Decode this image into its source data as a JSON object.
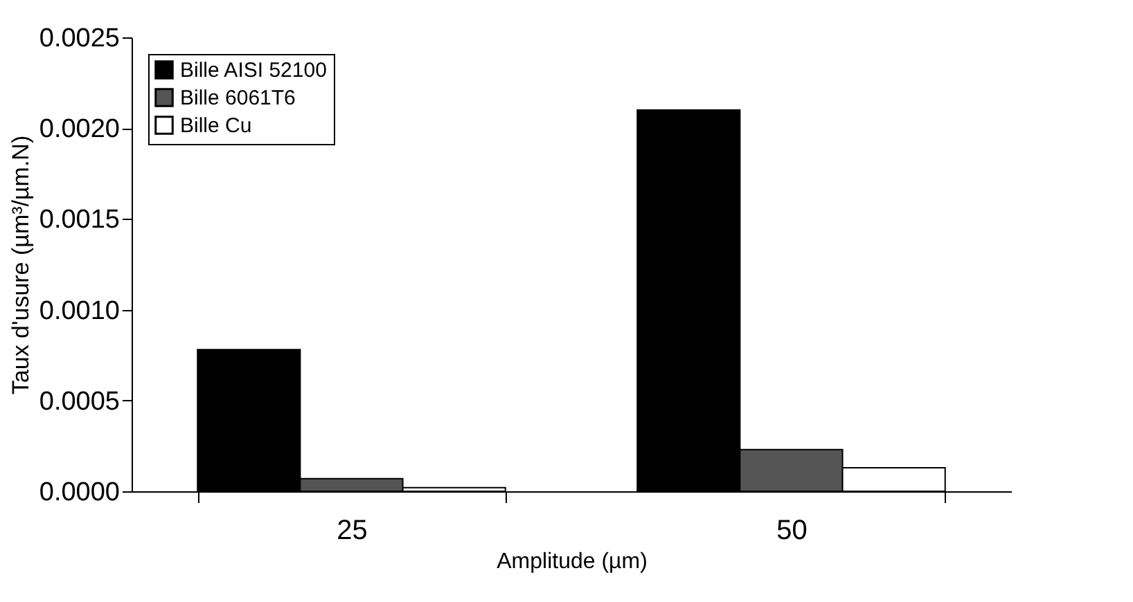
{
  "chart_data": {
    "type": "bar",
    "xlabel": "Amplitude (µm)",
    "ylabel": "Taux d'usure (µm³/µm.N)",
    "categories": [
      "25",
      "50"
    ],
    "series": [
      {
        "name": "Bille AISI 52100",
        "color": "#000000",
        "values": [
          0.00078,
          0.0021
        ]
      },
      {
        "name": "Bille 6061T6",
        "color": "#555555",
        "values": [
          7e-05,
          0.00023
        ]
      },
      {
        "name": "Bille Cu",
        "color": "#ffffff",
        "values": [
          2e-05,
          0.00013
        ]
      }
    ],
    "ylim": [
      0,
      0.0025
    ],
    "yticks": [
      {
        "value": 0,
        "label": "0.0000"
      },
      {
        "value": 0.0005,
        "label": "0.0005"
      },
      {
        "value": 0.001,
        "label": "0.0010"
      },
      {
        "value": 0.0015,
        "label": "0.0015"
      },
      {
        "value": 0.002,
        "label": "0.0020"
      },
      {
        "value": 0.0025,
        "label": "0.0025"
      }
    ],
    "grid": false,
    "legend": "top left"
  }
}
